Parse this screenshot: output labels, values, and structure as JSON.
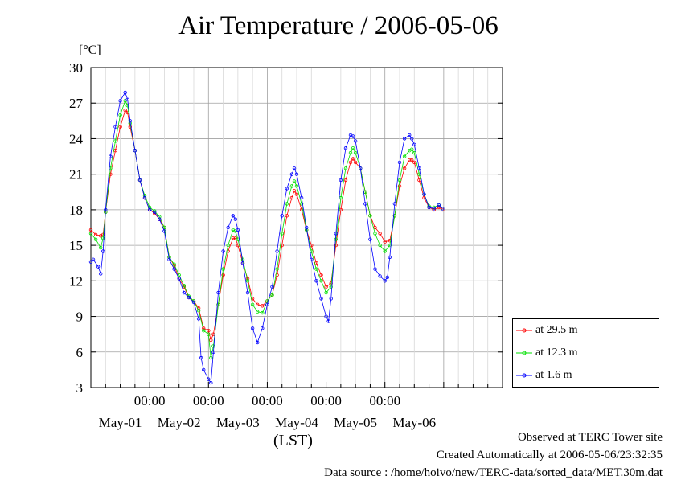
{
  "chart_data": {
    "type": "line",
    "title": "Air Temperature / 2006-05-06",
    "ylabel": "[°C]",
    "xlabel": "(LST)",
    "ylim": [
      3,
      30
    ],
    "yticks": [
      3,
      6,
      9,
      12,
      15,
      18,
      21,
      24,
      27,
      30
    ],
    "x_start": "2006-04-30T00:00",
    "x_end": "2006-05-06T24:00",
    "x_tick_labels": [
      "00:00",
      "00:00",
      "00:00",
      "00:00",
      "00:00"
    ],
    "x_date_labels": [
      "May-01",
      "May-02",
      "May-03",
      "May-04",
      "May-05",
      "May-06"
    ],
    "grid": true,
    "legend_position": "right",
    "series": [
      {
        "name": "at 29.5 m",
        "color": "#ff0000",
        "points": [
          [
            "04-30 00:00",
            16.3
          ],
          [
            "04-30 02:00",
            15.9
          ],
          [
            "04-30 04:00",
            15.8
          ],
          [
            "04-30 05:00",
            15.9
          ],
          [
            "04-30 06:00",
            17.8
          ],
          [
            "04-30 08:00",
            21.0
          ],
          [
            "04-30 10:00",
            23.0
          ],
          [
            "04-30 12:00",
            25.0
          ],
          [
            "04-30 14:00",
            26.4
          ],
          [
            "04-30 15:00",
            26.2
          ],
          [
            "04-30 16:00",
            25.0
          ],
          [
            "04-30 18:00",
            23.0
          ],
          [
            "04-30 20:00",
            20.5
          ],
          [
            "04-30 22:00",
            19.0
          ],
          [
            "05-01 00:00",
            18.0
          ],
          [
            "05-01 02:00",
            17.7
          ],
          [
            "05-01 04:00",
            17.2
          ],
          [
            "05-01 06:00",
            16.5
          ],
          [
            "05-01 08:00",
            14.0
          ],
          [
            "05-01 10:00",
            13.3
          ],
          [
            "05-01 12:00",
            12.2
          ],
          [
            "05-01 14:00",
            11.5
          ],
          [
            "05-01 16:00",
            10.6
          ],
          [
            "05-01 18:00",
            10.3
          ],
          [
            "05-01 20:00",
            9.7
          ],
          [
            "05-01 22:00",
            8.0
          ],
          [
            "05-02 00:00",
            7.8
          ],
          [
            "05-02 01:00",
            7.0
          ],
          [
            "05-02 02:00",
            7.5
          ],
          [
            "05-02 04:00",
            10.0
          ],
          [
            "05-02 06:00",
            12.5
          ],
          [
            "05-02 08:00",
            14.5
          ],
          [
            "05-02 10:00",
            15.6
          ],
          [
            "05-02 11:00",
            15.6
          ],
          [
            "05-02 12:00",
            15.0
          ],
          [
            "05-02 14:00",
            13.5
          ],
          [
            "05-02 16:00",
            12.2
          ],
          [
            "05-02 18:00",
            10.5
          ],
          [
            "05-02 20:00",
            10.0
          ],
          [
            "05-02 22:00",
            9.9
          ],
          [
            "05-03 00:00",
            10.3
          ],
          [
            "05-03 02:00",
            10.8
          ],
          [
            "05-03 04:00",
            12.5
          ],
          [
            "05-03 06:00",
            15.0
          ],
          [
            "05-03 08:00",
            17.5
          ],
          [
            "05-03 10:00",
            19.0
          ],
          [
            "05-03 11:00",
            19.6
          ],
          [
            "05-03 12:00",
            19.3
          ],
          [
            "05-03 14:00",
            18.0
          ],
          [
            "05-03 16:00",
            16.3
          ],
          [
            "05-03 18:00",
            15.0
          ],
          [
            "05-03 20:00",
            13.5
          ],
          [
            "05-03 22:00",
            12.5
          ],
          [
            "05-04 00:00",
            11.5
          ],
          [
            "05-04 02:00",
            11.8
          ],
          [
            "05-04 04:00",
            15.0
          ],
          [
            "05-04 06:00",
            18.0
          ],
          [
            "05-04 08:00",
            20.5
          ],
          [
            "05-04 10:00",
            22.0
          ],
          [
            "05-04 11:00",
            22.3
          ],
          [
            "05-04 12:00",
            22.0
          ],
          [
            "05-04 14:00",
            21.5
          ],
          [
            "05-04 16:00",
            19.5
          ],
          [
            "05-04 18:00",
            17.5
          ],
          [
            "05-04 20:00",
            16.5
          ],
          [
            "05-04 22:00",
            16.0
          ],
          [
            "05-05 00:00",
            15.3
          ],
          [
            "05-05 02:00",
            15.4
          ],
          [
            "05-05 04:00",
            17.5
          ],
          [
            "05-05 06:00",
            20.0
          ],
          [
            "05-05 08:00",
            21.5
          ],
          [
            "05-05 10:00",
            22.2
          ],
          [
            "05-05 11:00",
            22.2
          ],
          [
            "05-05 12:00",
            22.0
          ],
          [
            "05-05 14:00",
            20.5
          ],
          [
            "05-05 16:00",
            19.0
          ],
          [
            "05-05 18:00",
            18.2
          ],
          [
            "05-05 20:00",
            18.0
          ],
          [
            "05-05 22:00",
            18.2
          ],
          [
            "05-05 23:30",
            18.0
          ]
        ]
      },
      {
        "name": "at 12.3 m",
        "color": "#00e000",
        "points": [
          [
            "04-30 00:00",
            16.0
          ],
          [
            "04-30 02:00",
            15.5
          ],
          [
            "04-30 04:00",
            14.8
          ],
          [
            "04-30 05:00",
            15.6
          ],
          [
            "04-30 06:00",
            17.8
          ],
          [
            "04-30 08:00",
            21.5
          ],
          [
            "04-30 10:00",
            23.8
          ],
          [
            "04-30 12:00",
            26.0
          ],
          [
            "04-30 14:00",
            27.2
          ],
          [
            "04-30 15:00",
            26.8
          ],
          [
            "04-30 16:00",
            25.3
          ],
          [
            "04-30 18:00",
            23.0
          ],
          [
            "04-30 20:00",
            20.5
          ],
          [
            "04-30 22:00",
            19.2
          ],
          [
            "05-01 00:00",
            18.2
          ],
          [
            "05-01 02:00",
            17.9
          ],
          [
            "05-01 04:00",
            17.4
          ],
          [
            "05-01 06:00",
            16.5
          ],
          [
            "05-01 08:00",
            14.0
          ],
          [
            "05-01 10:00",
            13.4
          ],
          [
            "05-01 12:00",
            12.5
          ],
          [
            "05-01 14:00",
            11.6
          ],
          [
            "05-01 16:00",
            10.7
          ],
          [
            "05-01 18:00",
            10.3
          ],
          [
            "05-01 20:00",
            9.5
          ],
          [
            "05-01 22:00",
            7.8
          ],
          [
            "05-02 00:00",
            7.5
          ],
          [
            "05-02 01:00",
            5.5
          ],
          [
            "05-02 02:00",
            6.5
          ],
          [
            "05-02 04:00",
            10.0
          ],
          [
            "05-02 06:00",
            13.0
          ],
          [
            "05-02 08:00",
            15.0
          ],
          [
            "05-02 10:00",
            16.3
          ],
          [
            "05-02 11:00",
            16.2
          ],
          [
            "05-02 12:00",
            15.5
          ],
          [
            "05-02 14:00",
            13.8
          ],
          [
            "05-02 16:00",
            12.0
          ],
          [
            "05-02 18:00",
            10.0
          ],
          [
            "05-02 20:00",
            9.4
          ],
          [
            "05-02 22:00",
            9.3
          ],
          [
            "05-03 00:00",
            10.3
          ],
          [
            "05-03 02:00",
            10.8
          ],
          [
            "05-03 04:00",
            13.0
          ],
          [
            "05-03 06:00",
            16.0
          ],
          [
            "05-03 08:00",
            18.5
          ],
          [
            "05-03 10:00",
            20.0
          ],
          [
            "05-03 11:00",
            20.4
          ],
          [
            "05-03 12:00",
            20.0
          ],
          [
            "05-03 14:00",
            18.5
          ],
          [
            "05-03 16:00",
            16.3
          ],
          [
            "05-03 18:00",
            14.5
          ],
          [
            "05-03 20:00",
            13.0
          ],
          [
            "05-03 22:00",
            12.0
          ],
          [
            "05-04 00:00",
            11.0
          ],
          [
            "05-04 02:00",
            11.5
          ],
          [
            "05-04 04:00",
            15.5
          ],
          [
            "05-04 06:00",
            19.0
          ],
          [
            "05-04 08:00",
            21.5
          ],
          [
            "05-04 10:00",
            22.8
          ],
          [
            "05-04 11:00",
            23.2
          ],
          [
            "05-04 12:00",
            22.8
          ],
          [
            "05-04 14:00",
            21.5
          ],
          [
            "05-04 16:00",
            19.5
          ],
          [
            "05-04 18:00",
            17.5
          ],
          [
            "05-04 20:00",
            16.0
          ],
          [
            "05-04 22:00",
            15.0
          ],
          [
            "05-05 00:00",
            14.5
          ],
          [
            "05-05 02:00",
            15.0
          ],
          [
            "05-05 04:00",
            17.5
          ],
          [
            "05-05 06:00",
            20.5
          ],
          [
            "05-05 08:00",
            22.5
          ],
          [
            "05-05 10:00",
            23.0
          ],
          [
            "05-05 11:00",
            23.1
          ],
          [
            "05-05 12:00",
            22.8
          ],
          [
            "05-05 14:00",
            21.0
          ],
          [
            "05-05 16:00",
            19.3
          ],
          [
            "05-05 18:00",
            18.3
          ],
          [
            "05-05 20:00",
            18.2
          ],
          [
            "05-05 22:00",
            18.4
          ],
          [
            "05-05 23:30",
            18.1
          ]
        ]
      },
      {
        "name": "at 1.6 m",
        "color": "#0000ff",
        "points": [
          [
            "04-30 00:00",
            13.6
          ],
          [
            "04-30 01:00",
            13.8
          ],
          [
            "04-30 03:00",
            13.2
          ],
          [
            "04-30 04:00",
            12.6
          ],
          [
            "04-30 05:00",
            14.5
          ],
          [
            "04-30 06:00",
            18.0
          ],
          [
            "04-30 08:00",
            22.5
          ],
          [
            "04-30 10:00",
            25.0
          ],
          [
            "04-30 12:00",
            27.2
          ],
          [
            "04-30 14:00",
            27.9
          ],
          [
            "04-30 15:00",
            27.3
          ],
          [
            "04-30 16:00",
            25.5
          ],
          [
            "04-30 18:00",
            23.0
          ],
          [
            "04-30 20:00",
            20.5
          ],
          [
            "04-30 22:00",
            19.0
          ],
          [
            "05-01 00:00",
            18.0
          ],
          [
            "05-01 02:00",
            17.8
          ],
          [
            "05-01 04:00",
            17.2
          ],
          [
            "05-01 06:00",
            16.2
          ],
          [
            "05-01 08:00",
            13.8
          ],
          [
            "05-01 10:00",
            13.0
          ],
          [
            "05-01 12:00",
            12.2
          ],
          [
            "05-01 14:00",
            11.0
          ],
          [
            "05-01 16:00",
            10.6
          ],
          [
            "05-01 18:00",
            10.2
          ],
          [
            "05-01 20:00",
            8.8
          ],
          [
            "05-01 21:00",
            5.5
          ],
          [
            "05-01 22:00",
            4.5
          ],
          [
            "05-02 00:00",
            3.7
          ],
          [
            "05-02 01:00",
            3.4
          ],
          [
            "05-02 02:00",
            6.0
          ],
          [
            "05-02 04:00",
            11.0
          ],
          [
            "05-02 06:00",
            14.5
          ],
          [
            "05-02 08:00",
            16.5
          ],
          [
            "05-02 10:00",
            17.5
          ],
          [
            "05-02 11:00",
            17.2
          ],
          [
            "05-02 12:00",
            16.3
          ],
          [
            "05-02 14:00",
            13.5
          ],
          [
            "05-02 16:00",
            11.0
          ],
          [
            "05-02 18:00",
            8.0
          ],
          [
            "05-02 20:00",
            6.8
          ],
          [
            "05-02 22:00",
            8.0
          ],
          [
            "05-03 00:00",
            10.0
          ],
          [
            "05-03 02:00",
            11.5
          ],
          [
            "05-03 04:00",
            14.5
          ],
          [
            "05-03 06:00",
            17.5
          ],
          [
            "05-03 08:00",
            19.8
          ],
          [
            "05-03 10:00",
            21.0
          ],
          [
            "05-03 11:00",
            21.5
          ],
          [
            "05-03 12:00",
            21.0
          ],
          [
            "05-03 14:00",
            19.0
          ],
          [
            "05-03 16:00",
            16.5
          ],
          [
            "05-03 18:00",
            13.8
          ],
          [
            "05-03 20:00",
            12.0
          ],
          [
            "05-03 22:00",
            10.5
          ],
          [
            "05-04 00:00",
            9.0
          ],
          [
            "05-04 01:00",
            8.6
          ],
          [
            "05-04 02:00",
            10.5
          ],
          [
            "05-04 04:00",
            16.0
          ],
          [
            "05-04 06:00",
            20.5
          ],
          [
            "05-04 08:00",
            23.2
          ],
          [
            "05-04 10:00",
            24.3
          ],
          [
            "05-04 11:00",
            24.2
          ],
          [
            "05-04 12:00",
            23.8
          ],
          [
            "05-04 14:00",
            21.5
          ],
          [
            "05-04 16:00",
            18.5
          ],
          [
            "05-04 18:00",
            15.5
          ],
          [
            "05-04 20:00",
            13.0
          ],
          [
            "05-04 22:00",
            12.4
          ],
          [
            "05-05 00:00",
            12.0
          ],
          [
            "05-05 01:00",
            12.3
          ],
          [
            "05-05 02:00",
            14.0
          ],
          [
            "05-05 04:00",
            18.5
          ],
          [
            "05-05 06:00",
            22.0
          ],
          [
            "05-05 08:00",
            24.0
          ],
          [
            "05-05 10:00",
            24.3
          ],
          [
            "05-05 11:00",
            24.0
          ],
          [
            "05-05 12:00",
            23.5
          ],
          [
            "05-05 14:00",
            21.5
          ],
          [
            "05-05 16:00",
            19.3
          ],
          [
            "05-05 18:00",
            18.2
          ],
          [
            "05-05 20:00",
            18.1
          ],
          [
            "05-05 22:00",
            18.4
          ],
          [
            "05-05 23:30",
            18.1
          ]
        ]
      }
    ]
  },
  "footer": {
    "observed": "Observed at TERC Tower site",
    "created": "Created Automatically at 2006-05-06/23:32:35",
    "source": "Data source : /home/hoivo/new/TERC-data/sorted_data/MET.30m.dat"
  }
}
